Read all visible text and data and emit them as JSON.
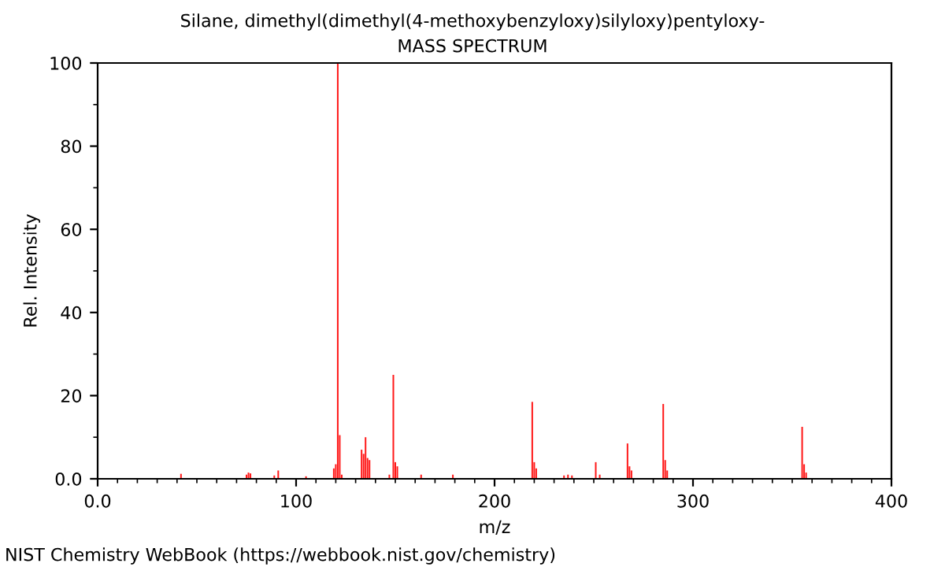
{
  "chart_data": {
    "type": "bar",
    "title": "Silane, dimethyl(dimethyl(4-methoxybenzyloxy)silyloxy)pentyloxy-",
    "subtitle": "MASS SPECTRUM",
    "xlabel": "m/z",
    "ylabel": "Rel. Intensity",
    "x": [
      42,
      75,
      76,
      77,
      89,
      91,
      105,
      119,
      120,
      121,
      122,
      123,
      133,
      134,
      135,
      136,
      137,
      147,
      149,
      150,
      151,
      163,
      179,
      219,
      220,
      221,
      235,
      237,
      239,
      251,
      253,
      267,
      268,
      269,
      285,
      286,
      287,
      355,
      356,
      357
    ],
    "values": [
      1.2,
      1.0,
      1.5,
      1.3,
      0.8,
      2.0,
      0.6,
      2.5,
      3.5,
      100,
      10.5,
      1.0,
      7,
      6,
      10,
      5,
      4.5,
      1.0,
      25,
      4,
      3,
      1.0,
      1.0,
      18.5,
      4,
      2.5,
      0.8,
      1.0,
      0.8,
      4,
      1.0,
      8.5,
      3,
      2,
      18,
      4.5,
      2,
      12.5,
      3.5,
      1.5
    ],
    "color": "#ff0000",
    "xlim": [
      0,
      400
    ],
    "xticks": [
      {
        "value": 0,
        "label": "0.0"
      },
      100,
      200,
      300,
      400
    ],
    "ylim": [
      0,
      100
    ],
    "yticks": [
      {
        "value": 0,
        "label": "0.0"
      },
      20,
      40,
      60,
      80,
      100
    ],
    "grid": false,
    "annotations": [
      "NIST Chemistry WebBook (https://webbook.nist.gov/chemistry)"
    ]
  }
}
